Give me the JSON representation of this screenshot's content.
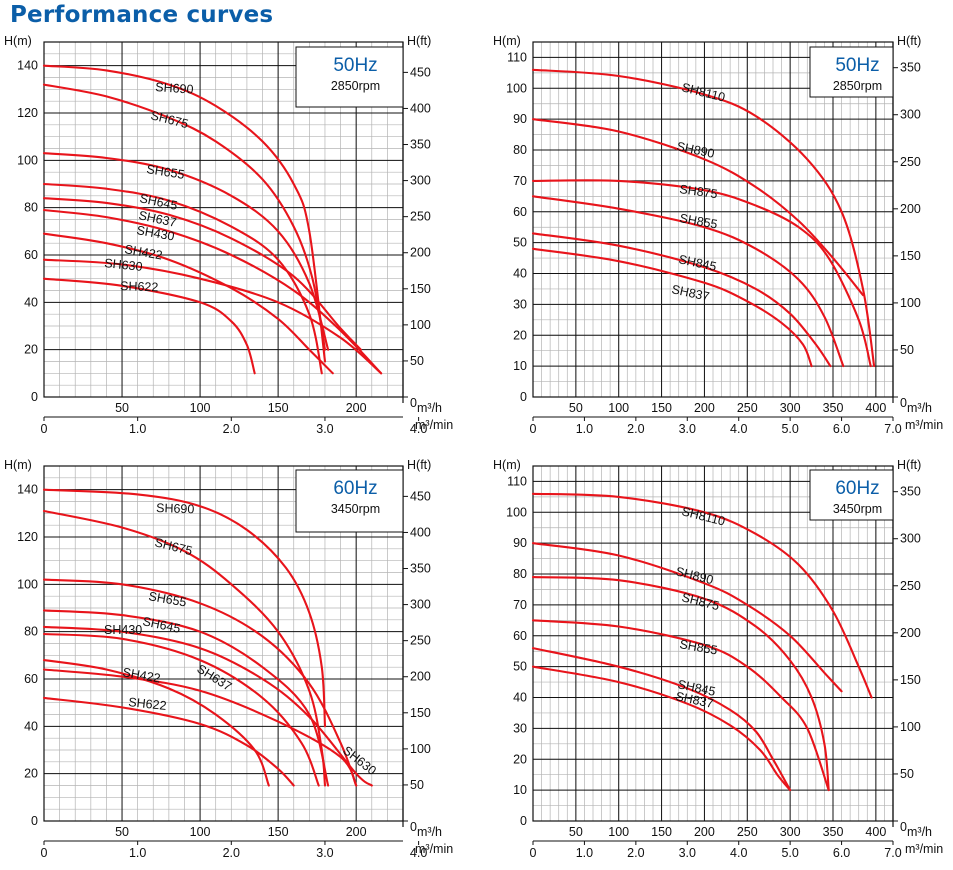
{
  "page_title": "Performance curves",
  "chart_data": [
    {
      "type": "line",
      "freq": "50Hz",
      "rpm": "2850rpm",
      "ylabel_left": "H(m)",
      "ylabel_right": "H(ft)",
      "xlabel_top": "m³/h",
      "xlabel_bottom": "m³/min",
      "xlim": [
        0,
        230
      ],
      "ylim": [
        0,
        150
      ],
      "x_ticks": [
        50,
        100,
        150,
        200
      ],
      "y_ticks": [
        0,
        20,
        40,
        60,
        80,
        100,
        120,
        140
      ],
      "x2_ticks": [
        "0",
        "1.0",
        "2.0",
        "3.0",
        "4.0"
      ],
      "y2_ticks": [
        "0",
        "50",
        "100",
        "150",
        "200",
        "250",
        "300",
        "350",
        "400",
        "450"
      ],
      "grid": true,
      "colors": {
        "curve": "#e8141b",
        "grid": "#b4b4b4",
        "major_grid": "#111111"
      },
      "series": [
        {
          "name": "SH690",
          "x": [
            0,
            40,
            80,
            110,
            140,
            160,
            170,
            180
          ],
          "y": [
            140,
            138,
            132,
            123,
            108,
            90,
            70,
            15
          ]
        },
        {
          "name": "SH675",
          "x": [
            0,
            40,
            80,
            110,
            140,
            160,
            172,
            180
          ],
          "y": [
            132,
            127,
            118,
            108,
            92,
            72,
            50,
            20
          ]
        },
        {
          "name": "SH655",
          "x": [
            0,
            40,
            80,
            120,
            150,
            170,
            182
          ],
          "y": [
            103,
            101,
            96,
            85,
            70,
            48,
            20
          ]
        },
        {
          "name": "SH645",
          "x": [
            0,
            40,
            80,
            120,
            150,
            170,
            178
          ],
          "y": [
            90,
            88,
            83,
            72,
            58,
            35,
            10
          ]
        },
        {
          "name": "SH637",
          "x": [
            0,
            40,
            80,
            120,
            160,
            190,
            203
          ],
          "y": [
            84,
            82,
            77,
            67,
            51,
            29,
            20
          ]
        },
        {
          "name": "SH430",
          "x": [
            0,
            40,
            80,
            120,
            160,
            190,
            216
          ],
          "y": [
            79,
            76,
            70,
            60,
            45,
            28,
            10
          ]
        },
        {
          "name": "SH422",
          "x": [
            0,
            40,
            80,
            120,
            150,
            170,
            185
          ],
          "y": [
            69,
            65,
            58,
            46,
            33,
            20,
            10
          ]
        },
        {
          "name": "SH630",
          "x": [
            0,
            50,
            100,
            150,
            190,
            216
          ],
          "y": [
            58,
            56,
            50,
            40,
            25,
            10
          ]
        },
        {
          "name": "SH622",
          "x": [
            0,
            50,
            100,
            120,
            130,
            135
          ],
          "y": [
            50,
            47,
            40,
            32,
            22,
            10
          ]
        }
      ]
    },
    {
      "type": "line",
      "freq": "50Hz",
      "rpm": "2850rpm",
      "ylabel_left": "H(m)",
      "ylabel_right": "H(ft)",
      "xlabel_top": "m³/h",
      "xlabel_bottom": "m³/min",
      "xlim": [
        0,
        420
      ],
      "ylim": [
        0,
        115
      ],
      "x_ticks": [
        50,
        100,
        150,
        200,
        250,
        300,
        350,
        400
      ],
      "y_ticks": [
        0,
        10,
        20,
        30,
        40,
        50,
        60,
        70,
        80,
        90,
        100,
        110
      ],
      "x2_ticks": [
        "0",
        "1.0",
        "2.0",
        "3.0",
        "4.0",
        "5.0",
        "6.0",
        "7.0"
      ],
      "y2_ticks": [
        "0",
        "50",
        "100",
        "150",
        "200",
        "250",
        "300",
        "350"
      ],
      "grid": true,
      "colors": {
        "curve": "#e8141b",
        "grid": "#b4b4b4",
        "major_grid": "#111111"
      },
      "series": [
        {
          "name": "SH8110",
          "x": [
            0,
            100,
            200,
            260,
            320,
            360,
            385,
            398
          ],
          "y": [
            106,
            104,
            98,
            91,
            77,
            60,
            35,
            10
          ]
        },
        {
          "name": "SH890",
          "x": [
            0,
            100,
            200,
            260,
            310,
            350,
            385
          ],
          "y": [
            90,
            86,
            77,
            68,
            57,
            45,
            33
          ]
        },
        {
          "name": "SH875",
          "x": [
            0,
            100,
            200,
            260,
            310,
            345,
            380,
            394
          ],
          "y": [
            70,
            70,
            67,
            62,
            55,
            45,
            25,
            10
          ]
        },
        {
          "name": "SH855",
          "x": [
            0,
            100,
            200,
            260,
            310,
            340,
            362
          ],
          "y": [
            65,
            61,
            55,
            48,
            38,
            26,
            10
          ]
        },
        {
          "name": "SH845",
          "x": [
            0,
            100,
            200,
            260,
            300,
            330,
            347
          ],
          "y": [
            53,
            49,
            42,
            35,
            27,
            17,
            10
          ]
        },
        {
          "name": "SH837",
          "x": [
            0,
            100,
            200,
            250,
            290,
            315,
            325
          ],
          "y": [
            48,
            44,
            37,
            31,
            24,
            17,
            10
          ]
        }
      ]
    },
    {
      "type": "line",
      "freq": "60Hz",
      "rpm": "3450rpm",
      "ylabel_left": "H(m)",
      "ylabel_right": "H(ft)",
      "xlabel_top": "m³/h",
      "xlabel_bottom": "m³/min",
      "xlim": [
        0,
        230
      ],
      "ylim": [
        0,
        150
      ],
      "x_ticks": [
        50,
        100,
        150,
        200
      ],
      "y_ticks": [
        0,
        20,
        40,
        60,
        80,
        100,
        120,
        140
      ],
      "x2_ticks": [
        "0",
        "1.0",
        "2.0",
        "3.0",
        "4.0"
      ],
      "y2_ticks": [
        "0",
        "50",
        "100",
        "150",
        "200",
        "250",
        "300",
        "350",
        "400",
        "450"
      ],
      "grid": true,
      "colors": {
        "curve": "#e8141b",
        "grid": "#b4b4b4",
        "major_grid": "#111111"
      },
      "series": [
        {
          "name": "SH690",
          "x": [
            0,
            60,
            100,
            130,
            155,
            170,
            178,
            180
          ],
          "y": [
            140,
            138,
            133,
            123,
            107,
            88,
            65,
            40
          ]
        },
        {
          "name": "SH675",
          "x": [
            0,
            50,
            90,
            120,
            150,
            170,
            178,
            180
          ],
          "y": [
            131,
            124,
            114,
            100,
            80,
            55,
            30,
            15
          ]
        },
        {
          "name": "SH655",
          "x": [
            0,
            50,
            100,
            140,
            170,
            190,
            200
          ],
          "y": [
            102,
            100,
            92,
            78,
            58,
            33,
            15
          ]
        },
        {
          "name": "SH645",
          "x": [
            0,
            50,
            100,
            140,
            170,
            182
          ],
          "y": [
            89,
            87,
            80,
            65,
            45,
            15
          ]
        },
        {
          "name": "SH430",
          "x": [
            0,
            50,
            100,
            140,
            170,
            200,
            210
          ],
          "y": [
            82,
            80,
            73,
            60,
            44,
            20,
            15
          ]
        },
        {
          "name": "SH637",
          "x": [
            0,
            50,
            100,
            140,
            165,
            176
          ],
          "y": [
            79,
            77,
            68,
            52,
            33,
            15
          ]
        },
        {
          "name": "SH422",
          "x": [
            0,
            40,
            80,
            110,
            135,
            144
          ],
          "y": [
            68,
            64,
            56,
            45,
            30,
            15
          ]
        },
        {
          "name": "SH630",
          "x": [
            0,
            50,
            100,
            150,
            190,
            200
          ],
          "y": [
            64,
            61,
            55,
            42,
            27,
            15
          ]
        },
        {
          "name": "SH622",
          "x": [
            0,
            50,
            100,
            130,
            150,
            160
          ],
          "y": [
            52,
            48,
            41,
            32,
            22,
            15
          ]
        }
      ]
    },
    {
      "type": "line",
      "freq": "60Hz",
      "rpm": "3450rpm",
      "ylabel_left": "H(m)",
      "ylabel_right": "H(ft)",
      "xlabel_top": "m³/h",
      "xlabel_bottom": "m³/min",
      "xlim": [
        0,
        420
      ],
      "ylim": [
        0,
        115
      ],
      "x_ticks": [
        50,
        100,
        150,
        200,
        250,
        300,
        350,
        400
      ],
      "y_ticks": [
        0,
        10,
        20,
        30,
        40,
        50,
        60,
        70,
        80,
        90,
        100,
        110
      ],
      "x2_ticks": [
        "0",
        "1.0",
        "2.0",
        "3.0",
        "4.0",
        "5.0",
        "6.0",
        "7.0"
      ],
      "y2_ticks": [
        "0",
        "50",
        "100",
        "150",
        "200",
        "250",
        "300",
        "350"
      ],
      "grid": true,
      "colors": {
        "curve": "#e8141b",
        "grid": "#b4b4b4",
        "major_grid": "#111111"
      },
      "series": [
        {
          "name": "SH8110",
          "x": [
            0,
            100,
            200,
            260,
            310,
            350,
            380,
            395
          ],
          "y": [
            106,
            105,
            100,
            93,
            83,
            68,
            50,
            40
          ]
        },
        {
          "name": "SH890",
          "x": [
            0,
            100,
            200,
            250,
            300,
            340,
            360
          ],
          "y": [
            90,
            86,
            77,
            70,
            60,
            48,
            42
          ]
        },
        {
          "name": "SH875",
          "x": [
            0,
            100,
            200,
            260,
            300,
            325,
            340,
            345
          ],
          "y": [
            79,
            78,
            72,
            63,
            52,
            40,
            25,
            10
          ]
        },
        {
          "name": "SH855",
          "x": [
            0,
            100,
            200,
            250,
            290,
            320,
            345
          ],
          "y": [
            65,
            63,
            57,
            50,
            40,
            30,
            10
          ]
        },
        {
          "name": "SH845",
          "x": [
            0,
            100,
            180,
            230,
            260,
            280,
            300
          ],
          "y": [
            56,
            50,
            43,
            36,
            29,
            20,
            10
          ]
        },
        {
          "name": "SH837",
          "x": [
            0,
            100,
            180,
            230,
            265,
            285,
            300
          ],
          "y": [
            50,
            45,
            38,
            31,
            23,
            15,
            10
          ]
        }
      ]
    }
  ]
}
